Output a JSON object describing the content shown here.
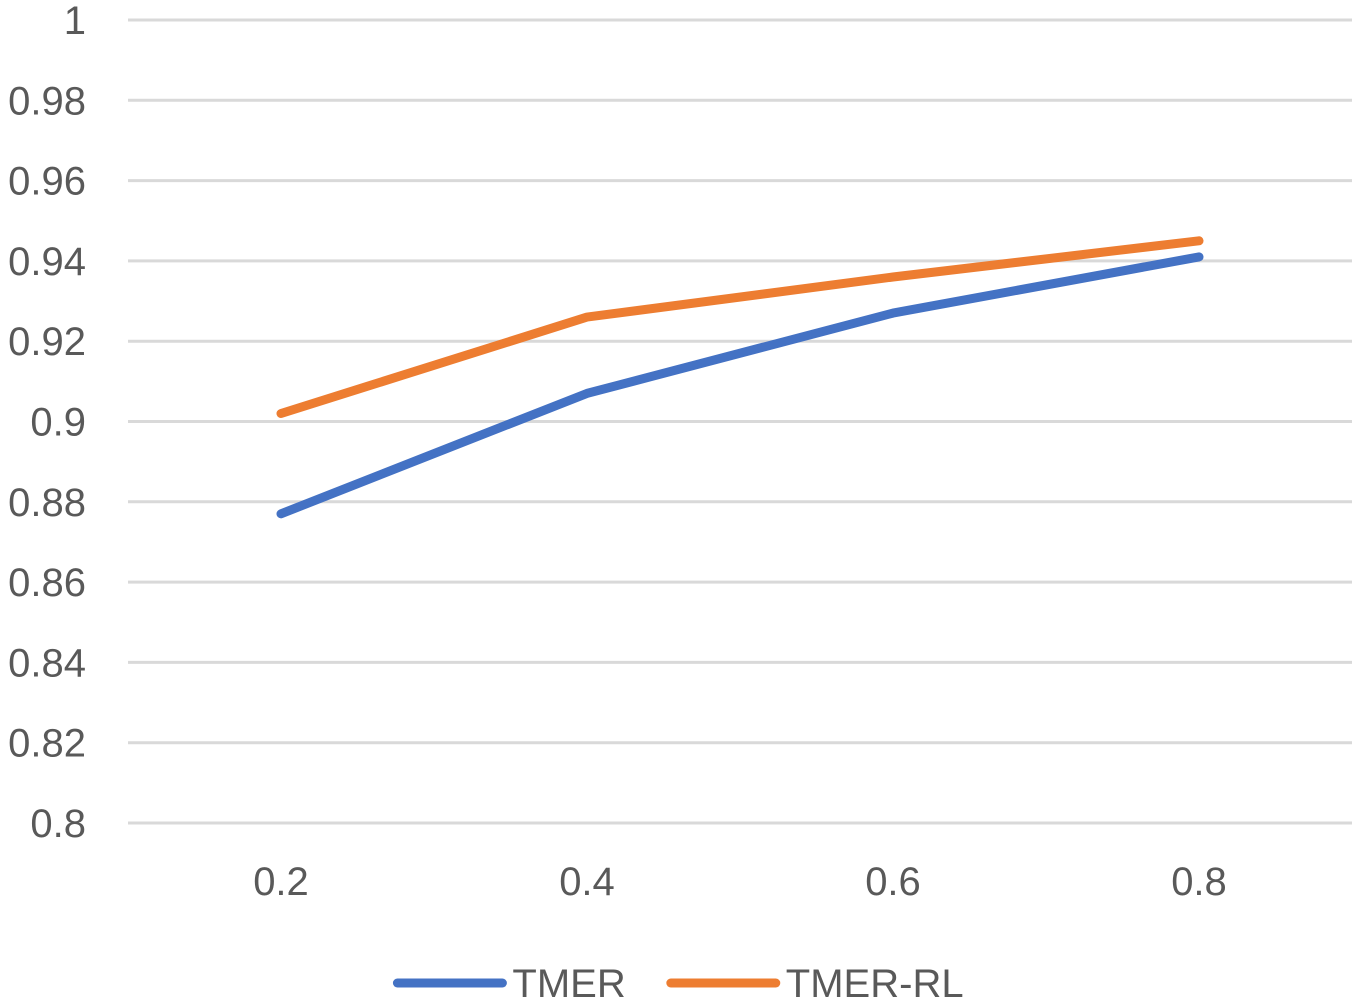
{
  "chart_data": {
    "type": "line",
    "title": "",
    "xlabel": "",
    "ylabel": "",
    "categories": [
      "0.2",
      "0.4",
      "0.6",
      "0.8"
    ],
    "ylim": [
      0.8,
      1
    ],
    "yticks": [
      "0.8",
      "0.82",
      "0.84",
      "0.86",
      "0.88",
      "0.9",
      "0.92",
      "0.94",
      "0.96",
      "0.98",
      "1"
    ],
    "grid": true,
    "legend_position": "bottom",
    "series": [
      {
        "name": "TMER",
        "color": "#4472C4",
        "values": [
          0.877,
          0.907,
          0.927,
          0.941
        ]
      },
      {
        "name": "TMER-RL",
        "color": "#ED7D31",
        "values": [
          0.902,
          0.926,
          0.936,
          0.945
        ]
      }
    ]
  }
}
